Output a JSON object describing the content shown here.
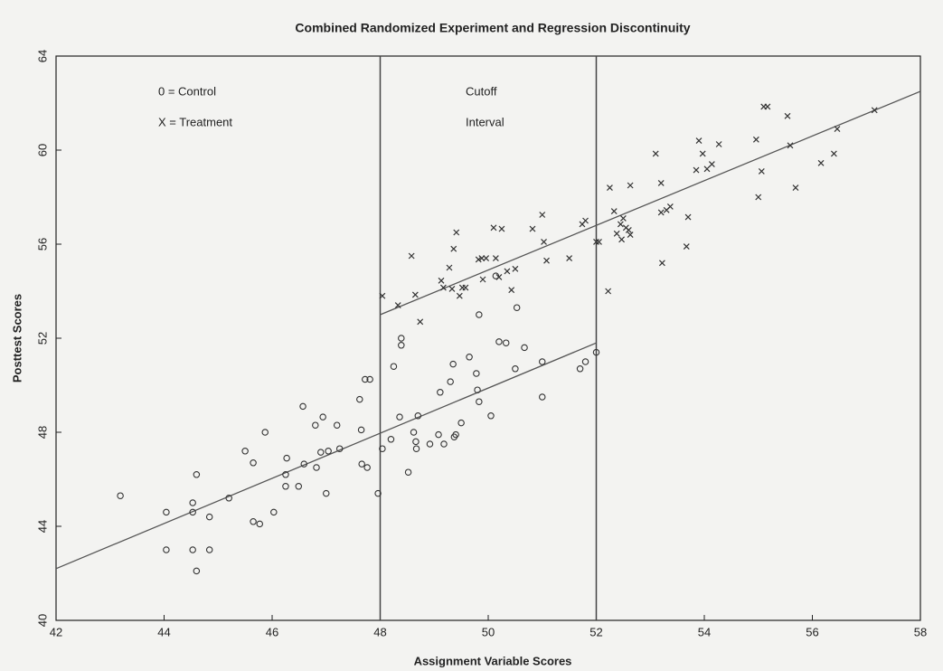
{
  "chart_data": {
    "type": "scatter",
    "title": "Combined Randomized Experiment and Regression Discontinuity",
    "x_label": "Assignment Variable Scores",
    "y_label": "Posttest Scores",
    "xlim": [
      42,
      58
    ],
    "ylim": [
      40,
      64
    ],
    "xticks": [
      42,
      44,
      46,
      48,
      50,
      52,
      54,
      56,
      58
    ],
    "yticks": [
      40,
      44,
      48,
      52,
      56,
      60,
      64
    ],
    "grid": false,
    "annotations": [
      "Cutoff",
      "Interval"
    ],
    "vlines": [
      48,
      52
    ],
    "fit_lines": [
      {
        "x": [
          42,
          52
        ],
        "y": [
          42.2,
          51.8
        ]
      },
      {
        "x": [
          48,
          58
        ],
        "y": [
          53.0,
          62.5
        ]
      }
    ],
    "series": [
      {
        "name": "0 = Control",
        "marker": "o",
        "color": "#333333",
        "x": [
          43.19,
          44.04,
          44.04,
          44.53,
          44.53,
          44.6,
          44.53,
          44.6,
          44.84,
          44.84,
          45.2,
          45.5,
          45.65,
          45.65,
          45.77,
          45.87,
          46.03,
          46.25,
          46.25,
          46.27,
          46.49,
          46.57,
          46.59,
          46.8,
          46.82,
          46.9,
          46.94,
          47.0,
          47.04,
          47.2,
          47.25,
          47.62,
          47.65,
          47.66,
          47.72,
          47.76,
          47.81,
          47.96,
          48.04,
          48.2,
          48.25,
          48.39,
          48.39,
          48.36,
          48.52,
          48.62,
          48.66,
          48.67,
          48.7,
          48.92,
          49.08,
          49.11,
          49.18,
          49.3,
          49.35,
          49.37,
          49.4,
          49.5,
          49.65,
          49.78,
          49.8,
          49.83,
          49.83,
          50.05,
          50.14,
          50.2,
          50.33,
          50.5,
          50.53,
          50.67,
          51.0,
          51.0,
          51.7,
          51.8,
          52.0
        ],
        "values": [
          45.3,
          44.6,
          43.0,
          45.0,
          44.6,
          46.2,
          43.0,
          42.1,
          44.4,
          43.0,
          45.2,
          47.2,
          46.7,
          44.2,
          44.1,
          48.0,
          44.6,
          46.2,
          45.7,
          46.9,
          45.7,
          49.1,
          46.65,
          48.3,
          46.5,
          47.15,
          48.65,
          45.4,
          47.2,
          48.3,
          47.3,
          49.4,
          48.1,
          46.65,
          50.25,
          46.5,
          50.25,
          45.4,
          47.3,
          47.7,
          50.8,
          52.0,
          51.7,
          48.65,
          46.3,
          48.0,
          47.6,
          47.3,
          48.7,
          47.5,
          47.9,
          49.7,
          47.5,
          50.15,
          50.9,
          47.8,
          47.9,
          48.4,
          51.2,
          50.5,
          49.8,
          49.3,
          53.0,
          48.7,
          54.65,
          51.85,
          51.8,
          50.7,
          53.3,
          51.6,
          49.5,
          51.0,
          50.7,
          51.0,
          51.4
        ]
      },
      {
        "name": "X = Treatment",
        "marker": "x",
        "color": "#333333",
        "x": [
          48.04,
          48.33,
          48.58,
          48.65,
          48.74,
          49.13,
          49.17,
          49.28,
          49.33,
          49.36,
          49.41,
          49.47,
          49.52,
          49.58,
          49.82,
          49.88,
          49.9,
          49.96,
          50.1,
          50.14,
          50.2,
          50.25,
          50.35,
          50.43,
          50.5,
          50.82,
          51.0,
          51.03,
          51.08,
          51.5,
          51.74,
          51.8,
          52.0,
          52.05,
          52.22,
          52.25,
          52.33,
          52.38,
          52.45,
          52.47,
          52.5,
          52.55,
          52.6,
          52.63,
          52.63,
          53.1,
          53.2,
          53.2,
          53.22,
          53.3,
          53.37,
          53.7,
          53.67,
          53.85,
          53.9,
          53.97,
          54.05,
          54.14,
          54.27,
          54.96,
          55.0,
          55.06,
          55.1,
          55.17,
          55.54,
          55.59,
          55.69,
          56.16,
          56.4,
          56.46,
          57.15
        ],
        "values": [
          53.8,
          53.4,
          55.5,
          53.85,
          52.7,
          54.45,
          54.15,
          55.0,
          54.1,
          55.8,
          56.5,
          53.8,
          54.15,
          54.15,
          55.35,
          55.4,
          54.5,
          55.4,
          56.7,
          55.4,
          54.6,
          56.65,
          54.85,
          54.05,
          54.95,
          56.65,
          57.25,
          56.1,
          55.3,
          55.4,
          56.85,
          57.0,
          56.1,
          56.1,
          54.0,
          58.4,
          57.4,
          56.45,
          56.85,
          56.2,
          57.1,
          56.7,
          56.6,
          58.5,
          56.4,
          59.85,
          58.6,
          57.35,
          55.2,
          57.45,
          57.6,
          57.15,
          55.9,
          59.15,
          60.4,
          59.85,
          59.2,
          59.4,
          60.25,
          60.45,
          58.0,
          59.1,
          61.85,
          61.85,
          61.45,
          60.2,
          58.4,
          59.45,
          59.85,
          60.9,
          61.7
        ]
      }
    ]
  }
}
